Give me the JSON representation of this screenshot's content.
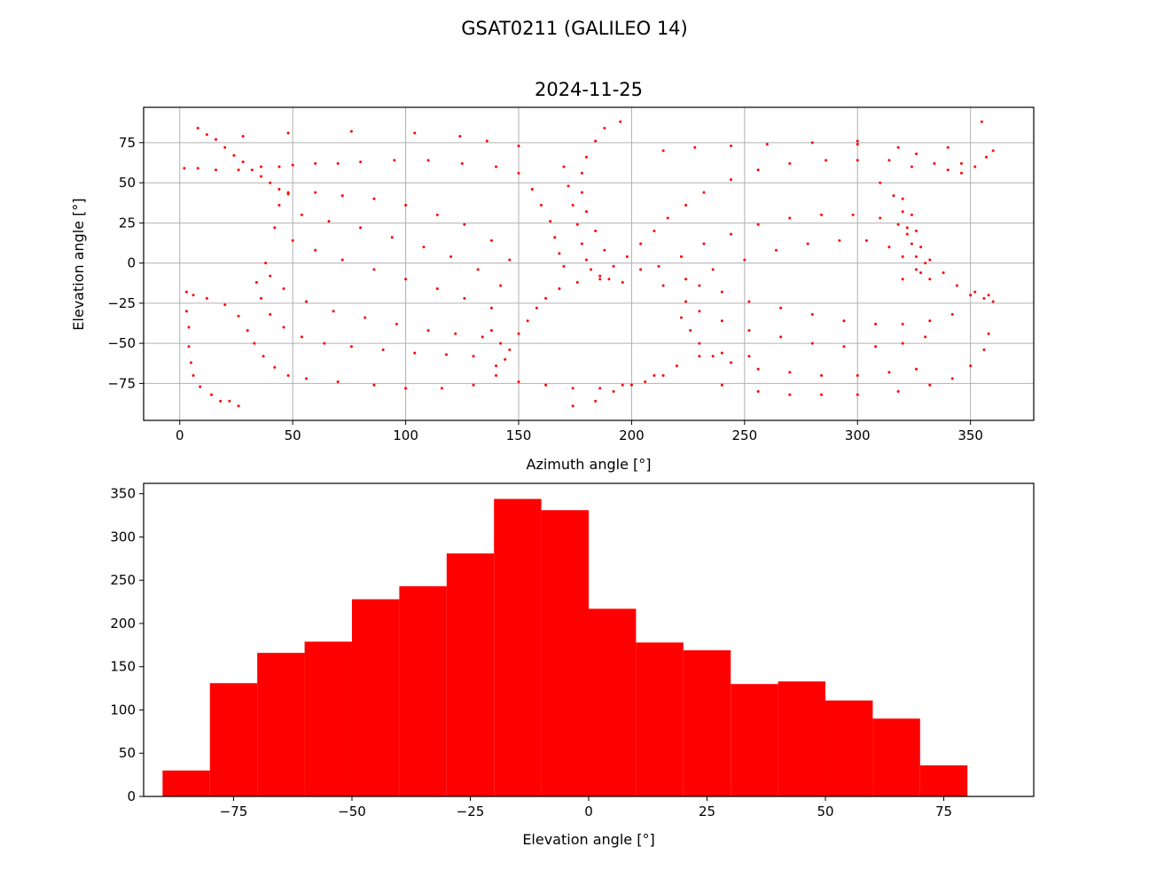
{
  "figure": {
    "suptitle": "GSAT0211 (GALILEO 14)"
  },
  "colors": {
    "marker": "#ff0000",
    "grid": "#b0b0b0",
    "axis": "#000000"
  },
  "chart_data": [
    {
      "type": "scatter",
      "title": "2024-11-25",
      "xlabel": "Azimuth angle [°]",
      "ylabel": "Elevation angle [°]",
      "xlim": [
        -16,
        378
      ],
      "ylim": [
        -98,
        97
      ],
      "xticks": [
        0,
        50,
        100,
        150,
        200,
        250,
        300,
        350
      ],
      "yticks": [
        -75,
        -50,
        -25,
        0,
        25,
        50,
        75
      ],
      "tick_labels_x": [
        "0",
        "50",
        "100",
        "150",
        "200",
        "250",
        "300",
        "350"
      ],
      "tick_labels_y": [
        "−75",
        "−50",
        "−25",
        "0",
        "25",
        "50",
        "75"
      ],
      "grid": true,
      "marker_size": "small",
      "points_description": "dense sampled sky track, one dot per azimuth/elevation sample",
      "points": [
        [
          8,
          84
        ],
        [
          12,
          80
        ],
        [
          16,
          77
        ],
        [
          20,
          72
        ],
        [
          24,
          67
        ],
        [
          28,
          63
        ],
        [
          32,
          58
        ],
        [
          36,
          54
        ],
        [
          40,
          50
        ],
        [
          44,
          46
        ],
        [
          48,
          43
        ],
        [
          28,
          79
        ],
        [
          48,
          81
        ],
        [
          76,
          82
        ],
        [
          104,
          81
        ],
        [
          124,
          79
        ],
        [
          136,
          76
        ],
        [
          150,
          73
        ],
        [
          195,
          88
        ],
        [
          280,
          75
        ],
        [
          300,
          74
        ],
        [
          355,
          88
        ],
        [
          2,
          59
        ],
        [
          8,
          59
        ],
        [
          16,
          58
        ],
        [
          26,
          58
        ],
        [
          36,
          60
        ],
        [
          44,
          60
        ],
        [
          50,
          61
        ],
        [
          60,
          62
        ],
        [
          70,
          62
        ],
        [
          80,
          63
        ],
        [
          95,
          64
        ],
        [
          110,
          64
        ],
        [
          125,
          62
        ],
        [
          140,
          60
        ],
        [
          3,
          -18
        ],
        [
          6,
          -20
        ],
        [
          12,
          -22
        ],
        [
          20,
          -26
        ],
        [
          26,
          -33
        ],
        [
          30,
          -42
        ],
        [
          33,
          -50
        ],
        [
          37,
          -58
        ],
        [
          42,
          -65
        ],
        [
          48,
          -70
        ],
        [
          3,
          -30
        ],
        [
          4,
          -40
        ],
        [
          4,
          -52
        ],
        [
          5,
          -62
        ],
        [
          6,
          -70
        ],
        [
          9,
          -77
        ],
        [
          14,
          -82
        ],
        [
          18,
          -86
        ],
        [
          22,
          -86
        ],
        [
          26,
          -89
        ],
        [
          34,
          -12
        ],
        [
          36,
          -22
        ],
        [
          40,
          -32
        ],
        [
          46,
          -40
        ],
        [
          54,
          -46
        ],
        [
          64,
          -50
        ],
        [
          76,
          -52
        ],
        [
          90,
          -54
        ],
        [
          104,
          -56
        ],
        [
          118,
          -57
        ],
        [
          130,
          -58
        ],
        [
          38,
          0
        ],
        [
          40,
          -8
        ],
        [
          46,
          -16
        ],
        [
          56,
          -24
        ],
        [
          68,
          -30
        ],
        [
          82,
          -34
        ],
        [
          96,
          -38
        ],
        [
          110,
          -42
        ],
        [
          122,
          -44
        ],
        [
          134,
          -46
        ],
        [
          42,
          22
        ],
        [
          50,
          14
        ],
        [
          60,
          8
        ],
        [
          72,
          2
        ],
        [
          86,
          -4
        ],
        [
          100,
          -10
        ],
        [
          114,
          -16
        ],
        [
          126,
          -22
        ],
        [
          138,
          -28
        ],
        [
          44,
          36
        ],
        [
          54,
          30
        ],
        [
          66,
          26
        ],
        [
          80,
          22
        ],
        [
          94,
          16
        ],
        [
          108,
          10
        ],
        [
          120,
          4
        ],
        [
          132,
          -4
        ],
        [
          142,
          -14
        ],
        [
          48,
          44
        ],
        [
          60,
          44
        ],
        [
          72,
          42
        ],
        [
          86,
          40
        ],
        [
          100,
          36
        ],
        [
          114,
          30
        ],
        [
          126,
          24
        ],
        [
          138,
          14
        ],
        [
          146,
          2
        ],
        [
          56,
          -72
        ],
        [
          70,
          -74
        ],
        [
          86,
          -76
        ],
        [
          100,
          -78
        ],
        [
          116,
          -78
        ],
        [
          130,
          -76
        ],
        [
          140,
          -70
        ],
        [
          144,
          -60
        ],
        [
          142,
          -50
        ],
        [
          138,
          -42
        ],
        [
          140,
          -64
        ],
        [
          146,
          -54
        ],
        [
          150,
          -44
        ],
        [
          154,
          -36
        ],
        [
          158,
          -28
        ],
        [
          162,
          -22
        ],
        [
          168,
          -16
        ],
        [
          176,
          -12
        ],
        [
          186,
          -10
        ],
        [
          196,
          -12
        ],
        [
          150,
          -74
        ],
        [
          162,
          -76
        ],
        [
          174,
          -78
        ],
        [
          186,
          -78
        ],
        [
          196,
          -76
        ],
        [
          206,
          -74
        ],
        [
          214,
          -70
        ],
        [
          174,
          -89
        ],
        [
          184,
          -86
        ],
        [
          192,
          -80
        ],
        [
          200,
          -76
        ],
        [
          210,
          -70
        ],
        [
          220,
          -64
        ],
        [
          230,
          -58
        ],
        [
          240,
          -56
        ],
        [
          252,
          -58
        ],
        [
          170,
          60
        ],
        [
          172,
          48
        ],
        [
          174,
          36
        ],
        [
          176,
          24
        ],
        [
          178,
          12
        ],
        [
          180,
          2
        ],
        [
          182,
          -4
        ],
        [
          186,
          -8
        ],
        [
          190,
          -10
        ],
        [
          188,
          84
        ],
        [
          184,
          76
        ],
        [
          180,
          66
        ],
        [
          178,
          56
        ],
        [
          178,
          44
        ],
        [
          180,
          32
        ],
        [
          184,
          20
        ],
        [
          188,
          8
        ],
        [
          192,
          -2
        ],
        [
          150,
          56
        ],
        [
          156,
          46
        ],
        [
          160,
          36
        ],
        [
          164,
          26
        ],
        [
          166,
          16
        ],
        [
          168,
          6
        ],
        [
          170,
          -2
        ],
        [
          198,
          4
        ],
        [
          204,
          12
        ],
        [
          210,
          20
        ],
        [
          216,
          28
        ],
        [
          224,
          36
        ],
        [
          232,
          44
        ],
        [
          244,
          52
        ],
        [
          256,
          58
        ],
        [
          270,
          62
        ],
        [
          286,
          64
        ],
        [
          300,
          64
        ],
        [
          314,
          64
        ],
        [
          324,
          60
        ],
        [
          204,
          -4
        ],
        [
          212,
          -2
        ],
        [
          222,
          4
        ],
        [
          232,
          12
        ],
        [
          244,
          18
        ],
        [
          256,
          24
        ],
        [
          270,
          28
        ],
        [
          284,
          30
        ],
        [
          298,
          30
        ],
        [
          310,
          28
        ],
        [
          318,
          24
        ],
        [
          322,
          18
        ],
        [
          214,
          -14
        ],
        [
          224,
          -10
        ],
        [
          236,
          -4
        ],
        [
          250,
          2
        ],
        [
          264,
          8
        ],
        [
          278,
          12
        ],
        [
          292,
          14
        ],
        [
          304,
          14
        ],
        [
          314,
          10
        ],
        [
          320,
          4
        ],
        [
          222,
          -34
        ],
        [
          226,
          -42
        ],
        [
          230,
          -50
        ],
        [
          236,
          -58
        ],
        [
          244,
          -62
        ],
        [
          256,
          -66
        ],
        [
          270,
          -68
        ],
        [
          284,
          -70
        ],
        [
          300,
          -70
        ],
        [
          314,
          -68
        ],
        [
          326,
          -66
        ],
        [
          224,
          -24
        ],
        [
          230,
          -30
        ],
        [
          240,
          -36
        ],
        [
          252,
          -42
        ],
        [
          266,
          -46
        ],
        [
          280,
          -50
        ],
        [
          294,
          -52
        ],
        [
          308,
          -52
        ],
        [
          320,
          -50
        ],
        [
          330,
          -46
        ],
        [
          230,
          -14
        ],
        [
          240,
          -18
        ],
        [
          252,
          -24
        ],
        [
          266,
          -28
        ],
        [
          280,
          -32
        ],
        [
          294,
          -36
        ],
        [
          308,
          -38
        ],
        [
          320,
          -38
        ],
        [
          332,
          -36
        ],
        [
          342,
          -32
        ],
        [
          240,
          -76
        ],
        [
          256,
          -80
        ],
        [
          270,
          -82
        ],
        [
          284,
          -82
        ],
        [
          300,
          -82
        ],
        [
          318,
          -80
        ],
        [
          332,
          -76
        ],
        [
          342,
          -72
        ],
        [
          350,
          -64
        ],
        [
          356,
          -54
        ],
        [
          358,
          -44
        ],
        [
          320,
          -10
        ],
        [
          326,
          -4
        ],
        [
          332,
          2
        ],
        [
          338,
          -6
        ],
        [
          344,
          -14
        ],
        [
          350,
          -20
        ],
        [
          356,
          -22
        ],
        [
          360,
          -24
        ],
        [
          310,
          50
        ],
        [
          316,
          42
        ],
        [
          320,
          32
        ],
        [
          322,
          22
        ],
        [
          324,
          12
        ],
        [
          326,
          4
        ],
        [
          328,
          -6
        ],
        [
          320,
          40
        ],
        [
          324,
          30
        ],
        [
          326,
          20
        ],
        [
          328,
          10
        ],
        [
          330,
          0
        ],
        [
          332,
          -10
        ],
        [
          318,
          72
        ],
        [
          326,
          68
        ],
        [
          334,
          62
        ],
        [
          340,
          58
        ],
        [
          346,
          56
        ],
        [
          352,
          60
        ],
        [
          357,
          66
        ],
        [
          360,
          70
        ],
        [
          260,
          74
        ],
        [
          244,
          73
        ],
        [
          228,
          72
        ],
        [
          214,
          70
        ],
        [
          300,
          76
        ],
        [
          340,
          72
        ],
        [
          346,
          62
        ],
        [
          352,
          -18
        ],
        [
          358,
          -20
        ]
      ]
    },
    {
      "type": "bar",
      "subtype": "histogram",
      "xlabel": "Elevation angle [°]",
      "ylabel": "",
      "xlim": [
        -94,
        94
      ],
      "ylim": [
        0,
        362
      ],
      "xticks": [
        -75,
        -50,
        -25,
        0,
        25,
        50,
        75
      ],
      "yticks": [
        0,
        50,
        100,
        150,
        200,
        250,
        300,
        350
      ],
      "tick_labels_x": [
        "−75",
        "−50",
        "−25",
        "0",
        "25",
        "50",
        "75"
      ],
      "tick_labels_y": [
        "0",
        "50",
        "100",
        "150",
        "200",
        "250",
        "300",
        "350"
      ],
      "grid": false,
      "bin_edges": [
        -90,
        -80,
        -70,
        -60,
        -50,
        -40,
        -30,
        -20,
        -10,
        0,
        10,
        20,
        30,
        40,
        50,
        60,
        70,
        80
      ],
      "values": [
        30,
        131,
        166,
        179,
        228,
        243,
        281,
        344,
        331,
        217,
        178,
        169,
        130,
        133,
        111,
        90,
        36
      ]
    }
  ]
}
